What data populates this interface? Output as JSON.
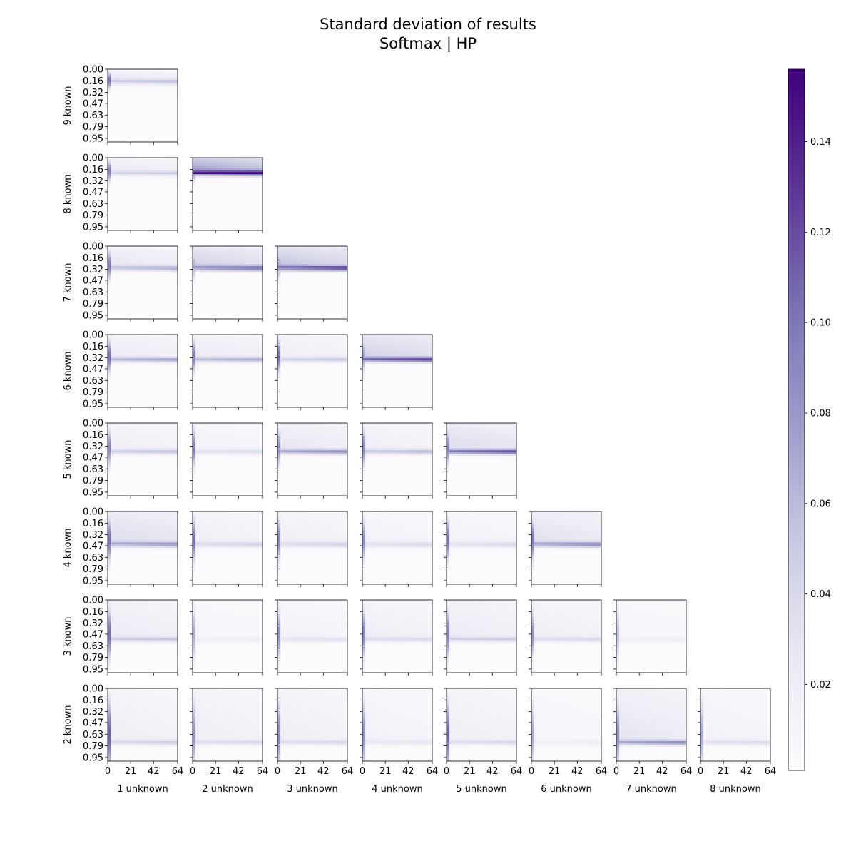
{
  "chart_data": {
    "type": "heatmap",
    "title_lines": [
      "Standard deviation of results",
      "Softmax | HP"
    ],
    "layout": "lower-triangular grid of heatmap panels",
    "rows": [
      "9 known",
      "8 known",
      "7 known",
      "6 known",
      "5 known",
      "4 known",
      "3 known",
      "2 known"
    ],
    "columns": [
      "1 unknown",
      "2 unknown",
      "3 unknown",
      "4 unknown",
      "5 unknown",
      "6 unknown",
      "7 unknown",
      "8 unknown"
    ],
    "panels_per_row": [
      1,
      2,
      3,
      4,
      5,
      6,
      7,
      8
    ],
    "x_ticks": [
      "0",
      "21",
      "42",
      "64"
    ],
    "x_tick_values": [
      0,
      21,
      42,
      64
    ],
    "x_range": [
      0,
      64
    ],
    "y_ticks": [
      "0.00",
      "0.16",
      "0.32",
      "0.47",
      "0.63",
      "0.79",
      "0.95"
    ],
    "y_tick_values": [
      0.0,
      0.16,
      0.32,
      0.47,
      0.63,
      0.79,
      0.95
    ],
    "y_range": [
      0.0,
      1.0
    ],
    "y_inverted": true,
    "colormap": "Purples",
    "colormap_low": "#fcfbfd",
    "colormap_high": "#3f007d",
    "colorbar": {
      "ticks": [
        "0.02",
        "0.04",
        "0.06",
        "0.08",
        "0.10",
        "0.12",
        "0.14"
      ],
      "tick_values": [
        0.02,
        0.04,
        0.06,
        0.08,
        0.1,
        0.12,
        0.14
      ],
      "range": [
        0.001,
        0.156
      ]
    },
    "panels": [
      {
        "row": "9 known",
        "column": "1 unknown",
        "band_y": 0.18,
        "band_peak": 0.045,
        "upper_level": 0.03,
        "left_spike": 0.15
      },
      {
        "row": "8 known",
        "column": "1 unknown",
        "band_y": 0.22,
        "band_peak": 0.035,
        "upper_level": 0.025,
        "left_spike": 0.14
      },
      {
        "row": "8 known",
        "column": "2 unknown",
        "band_y": 0.22,
        "band_peak": 0.125,
        "upper_level": 0.085,
        "left_spike": 0.12
      },
      {
        "row": "7 known",
        "column": "1 unknown",
        "band_y": 0.31,
        "band_peak": 0.06,
        "upper_level": 0.03,
        "left_spike": 0.14
      },
      {
        "row": "7 known",
        "column": "2 unknown",
        "band_y": 0.31,
        "band_peak": 0.09,
        "upper_level": 0.05,
        "left_spike": 0.09
      },
      {
        "row": "7 known",
        "column": "3 unknown",
        "band_y": 0.31,
        "band_peak": 0.11,
        "upper_level": 0.06,
        "left_spike": 0.1
      },
      {
        "row": "6 known",
        "column": "1 unknown",
        "band_y": 0.35,
        "band_peak": 0.06,
        "upper_level": 0.025,
        "left_spike": 0.15
      },
      {
        "row": "6 known",
        "column": "2 unknown",
        "band_y": 0.35,
        "band_peak": 0.055,
        "upper_level": 0.025,
        "left_spike": 0.14
      },
      {
        "row": "6 known",
        "column": "3 unknown",
        "band_y": 0.35,
        "band_peak": 0.04,
        "upper_level": 0.02,
        "left_spike": 0.15
      },
      {
        "row": "6 known",
        "column": "4 unknown",
        "band_y": 0.35,
        "band_peak": 0.1,
        "upper_level": 0.05,
        "left_spike": 0.11
      },
      {
        "row": "5 known",
        "column": "1 unknown",
        "band_y": 0.4,
        "band_peak": 0.045,
        "upper_level": 0.02,
        "left_spike": 0.13
      },
      {
        "row": "5 known",
        "column": "2 unknown",
        "band_y": 0.4,
        "band_peak": 0.03,
        "upper_level": 0.015,
        "left_spike": 0.14
      },
      {
        "row": "5 known",
        "column": "3 unknown",
        "band_y": 0.4,
        "band_peak": 0.07,
        "upper_level": 0.03,
        "left_spike": 0.12
      },
      {
        "row": "5 known",
        "column": "4 unknown",
        "band_y": 0.4,
        "band_peak": 0.05,
        "upper_level": 0.02,
        "left_spike": 0.13
      },
      {
        "row": "5 known",
        "column": "5 unknown",
        "band_y": 0.4,
        "band_peak": 0.1,
        "upper_level": 0.04,
        "left_spike": 0.13
      },
      {
        "row": "4 known",
        "column": "1 unknown",
        "band_y": 0.46,
        "band_peak": 0.07,
        "upper_level": 0.04,
        "left_spike": 0.15
      },
      {
        "row": "4 known",
        "column": "2 unknown",
        "band_y": 0.46,
        "band_peak": 0.04,
        "upper_level": 0.02,
        "left_spike": 0.15
      },
      {
        "row": "4 known",
        "column": "3 unknown",
        "band_y": 0.46,
        "band_peak": 0.04,
        "upper_level": 0.02,
        "left_spike": 0.13
      },
      {
        "row": "4 known",
        "column": "4 unknown",
        "band_y": 0.46,
        "band_peak": 0.035,
        "upper_level": 0.015,
        "left_spike": 0.12
      },
      {
        "row": "4 known",
        "column": "5 unknown",
        "band_y": 0.46,
        "band_peak": 0.035,
        "upper_level": 0.015,
        "left_spike": 0.15
      },
      {
        "row": "4 known",
        "column": "6 unknown",
        "band_y": 0.46,
        "band_peak": 0.08,
        "upper_level": 0.035,
        "left_spike": 0.14
      },
      {
        "row": "3 known",
        "column": "1 unknown",
        "band_y": 0.55,
        "band_peak": 0.04,
        "upper_level": 0.025,
        "left_spike": 0.15
      },
      {
        "row": "3 known",
        "column": "2 unknown",
        "band_y": 0.55,
        "band_peak": 0.015,
        "upper_level": 0.01,
        "left_spike": 0.1
      },
      {
        "row": "3 known",
        "column": "3 unknown",
        "band_y": 0.55,
        "band_peak": 0.025,
        "upper_level": 0.015,
        "left_spike": 0.12
      },
      {
        "row": "3 known",
        "column": "4 unknown",
        "band_y": 0.55,
        "band_peak": 0.03,
        "upper_level": 0.02,
        "left_spike": 0.13
      },
      {
        "row": "3 known",
        "column": "5 unknown",
        "band_y": 0.55,
        "band_peak": 0.035,
        "upper_level": 0.025,
        "left_spike": 0.14
      },
      {
        "row": "3 known",
        "column": "6 unknown",
        "band_y": 0.55,
        "band_peak": 0.03,
        "upper_level": 0.02,
        "left_spike": 0.12
      },
      {
        "row": "3 known",
        "column": "7 unknown",
        "band_y": 0.55,
        "band_peak": 0.015,
        "upper_level": 0.01,
        "left_spike": 0.08
      },
      {
        "row": "2 known",
        "column": "1 unknown",
        "band_y": 0.75,
        "band_peak": 0.035,
        "upper_level": 0.02,
        "left_spike": 0.16
      },
      {
        "row": "2 known",
        "column": "2 unknown",
        "band_y": 0.75,
        "band_peak": 0.03,
        "upper_level": 0.02,
        "left_spike": 0.12
      },
      {
        "row": "2 known",
        "column": "3 unknown",
        "band_y": 0.75,
        "band_peak": 0.03,
        "upper_level": 0.02,
        "left_spike": 0.13
      },
      {
        "row": "2 known",
        "column": "4 unknown",
        "band_y": 0.75,
        "band_peak": 0.02,
        "upper_level": 0.015,
        "left_spike": 0.12
      },
      {
        "row": "2 known",
        "column": "5 unknown",
        "band_y": 0.75,
        "band_peak": 0.03,
        "upper_level": 0.02,
        "left_spike": 0.16
      },
      {
        "row": "2 known",
        "column": "6 unknown",
        "band_y": 0.75,
        "band_peak": 0.015,
        "upper_level": 0.01,
        "left_spike": 0.1
      },
      {
        "row": "2 known",
        "column": "7 unknown",
        "band_y": 0.75,
        "band_peak": 0.07,
        "upper_level": 0.03,
        "left_spike": 0.12
      },
      {
        "row": "2 known",
        "column": "8 unknown",
        "band_y": 0.75,
        "band_peak": 0.03,
        "upper_level": 0.015,
        "left_spike": 0.1
      }
    ]
  }
}
